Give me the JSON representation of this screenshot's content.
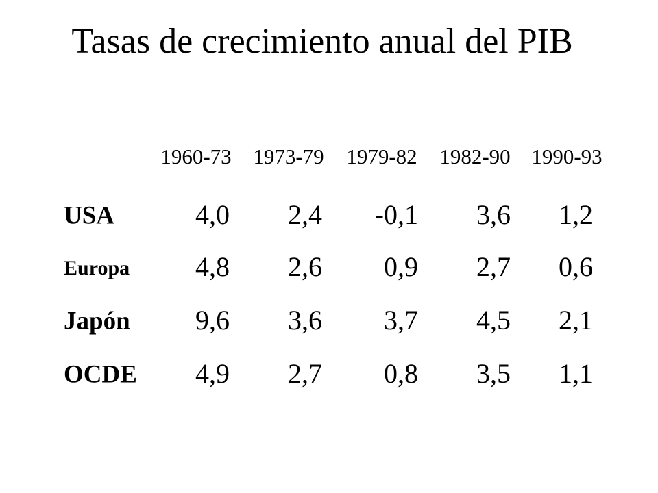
{
  "header": {
    "title": "Tasas de crecimiento anual del PIB"
  },
  "table": {
    "columns": [
      "1960-73",
      "1973-79",
      "1979-82",
      "1982-90",
      "1990-93"
    ],
    "rows": [
      {
        "label": "USA",
        "cells": [
          "4,0",
          "2,4",
          "-0,1",
          "3,6",
          "1,2"
        ]
      },
      {
        "label": "Europa",
        "cells": [
          "4,8",
          "2,6",
          "0,9",
          "2,7",
          "0,6"
        ]
      },
      {
        "label": "Japón",
        "cells": [
          "9,6",
          "3,6",
          "3,7",
          "4,5",
          "2,1"
        ]
      },
      {
        "label": "OCDE",
        "cells": [
          "4,9",
          "2,7",
          "0,8",
          "3,5",
          "1,1"
        ]
      }
    ]
  }
}
